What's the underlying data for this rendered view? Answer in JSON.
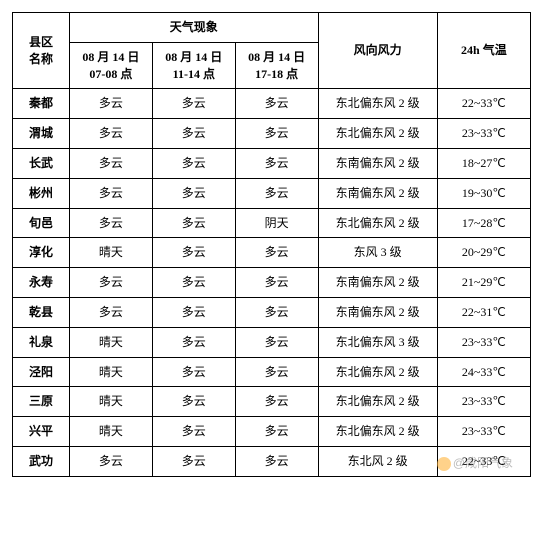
{
  "headers": {
    "region": "县区\n名称",
    "weather_group": "天气现象",
    "slot1": "08 月 14 日\n07-08 点",
    "slot2": "08 月 14 日\n11-14 点",
    "slot3": "08 月 14 日\n17-18 点",
    "wind": "风向风力",
    "temp": "24h 气温"
  },
  "rows": [
    {
      "name": "秦都",
      "w": [
        "多云",
        "多云",
        "多云"
      ],
      "wind": "东北偏东风 2 级",
      "temp": "22~33℃"
    },
    {
      "name": "渭城",
      "w": [
        "多云",
        "多云",
        "多云"
      ],
      "wind": "东北偏东风 2 级",
      "temp": "23~33℃"
    },
    {
      "name": "长武",
      "w": [
        "多云",
        "多云",
        "多云"
      ],
      "wind": "东南偏东风 2 级",
      "temp": "18~27℃"
    },
    {
      "name": "彬州",
      "w": [
        "多云",
        "多云",
        "多云"
      ],
      "wind": "东南偏东风 2 级",
      "temp": "19~30℃"
    },
    {
      "name": "旬邑",
      "w": [
        "多云",
        "多云",
        "阴天"
      ],
      "wind": "东北偏东风 2 级",
      "temp": "17~28℃"
    },
    {
      "name": "淳化",
      "w": [
        "晴天",
        "多云",
        "多云"
      ],
      "wind": "东风 3 级",
      "temp": "20~29℃"
    },
    {
      "name": "永寿",
      "w": [
        "多云",
        "多云",
        "多云"
      ],
      "wind": "东南偏东风 2 级",
      "temp": "21~29℃"
    },
    {
      "name": "乾县",
      "w": [
        "多云",
        "多云",
        "多云"
      ],
      "wind": "东南偏东风 2 级",
      "temp": "22~31℃"
    },
    {
      "name": "礼泉",
      "w": [
        "晴天",
        "多云",
        "多云"
      ],
      "wind": "东北偏东风 3 级",
      "temp": "23~33℃"
    },
    {
      "name": "泾阳",
      "w": [
        "晴天",
        "多云",
        "多云"
      ],
      "wind": "东北偏东风 2 级",
      "temp": "24~33℃"
    },
    {
      "name": "三原",
      "w": [
        "晴天",
        "多云",
        "多云"
      ],
      "wind": "东北偏东风 2 级",
      "temp": "23~33℃"
    },
    {
      "name": "兴平",
      "w": [
        "晴天",
        "多云",
        "多云"
      ],
      "wind": "东北偏东风 2 级",
      "temp": "23~33℃"
    },
    {
      "name": "武功",
      "w": [
        "多云",
        "多云",
        "多云"
      ],
      "wind": "东北风 2 级",
      "temp": "22~33℃"
    }
  ],
  "watermark": "@咸阳气象"
}
